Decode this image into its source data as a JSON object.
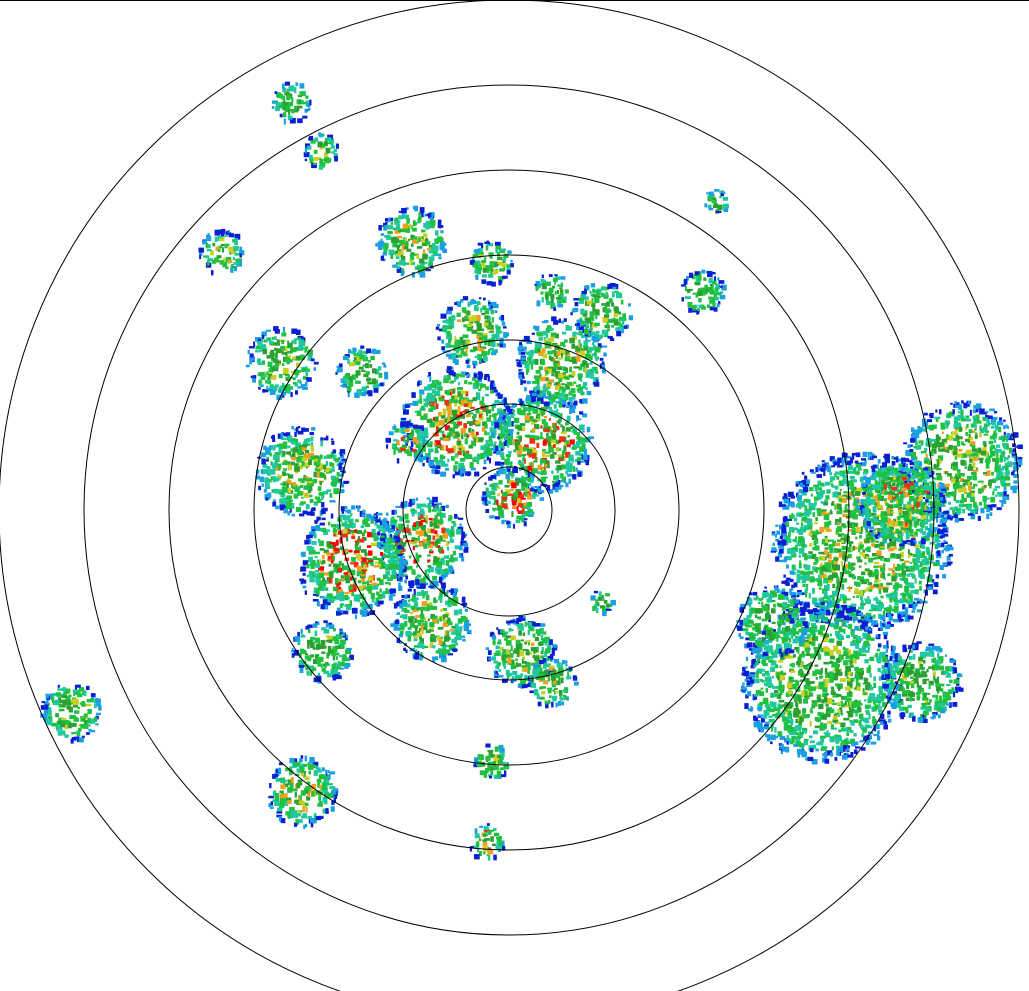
{
  "radar": {
    "display": "ppi-reflectivity",
    "range_rings": 7,
    "ring_color": "#000000",
    "background": "#ffffff",
    "reflectivity_palette": [
      "#0a1ed2",
      "#1aa0e0",
      "#1fc8a0",
      "#20c040",
      "#2aa030",
      "#c8d020",
      "#f0a020",
      "#ee3010",
      "#ff0000"
    ]
  }
}
